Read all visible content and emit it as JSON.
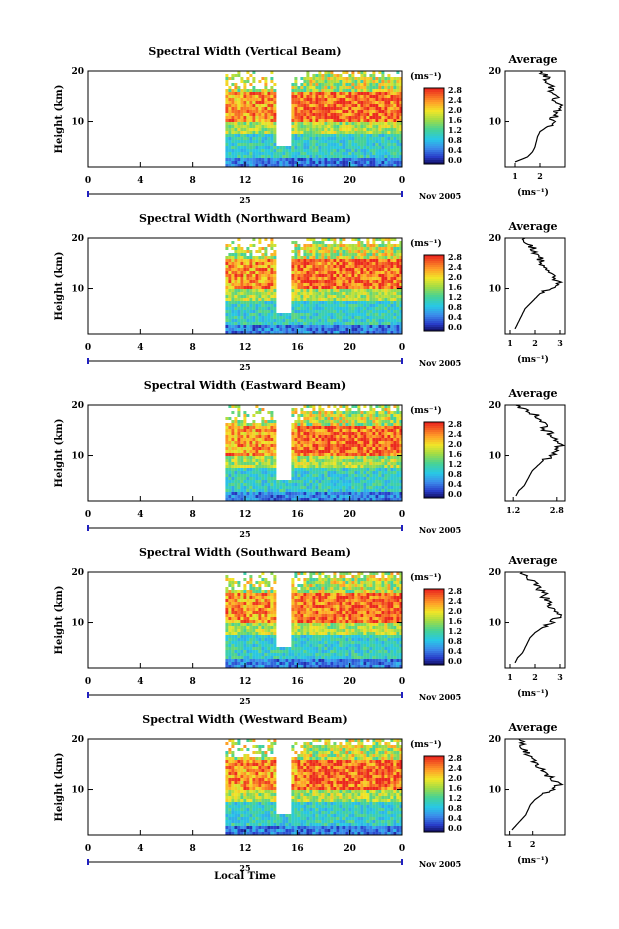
{
  "footer_label": "Local Time",
  "date_label": "Nov 2005",
  "day_label": "25",
  "unit_label": "(ms⁻¹)",
  "avg_title": "Average",
  "ylabel": "Height (km)",
  "colorbar_ticks": [
    "2.8",
    "2.4",
    "2.0",
    "1.6",
    "1.2",
    "0.8",
    "0.4",
    "0.0"
  ],
  "chart_data": [
    {
      "type": "heatmap",
      "title": "Spectral Width (Vertical Beam)",
      "x_ticks": [
        "0",
        "4",
        "8",
        "12",
        "16",
        "20",
        "0"
      ],
      "y_ticks": [
        "20",
        "10"
      ],
      "xlim": [
        0,
        24
      ],
      "ylim": [
        1,
        20
      ],
      "data_start_hour": 10.5,
      "gap": [
        14.3,
        15.5
      ],
      "profile": {
        "title": "Average",
        "xlabel": "(ms⁻¹)",
        "x_ticks": [
          "1",
          "2"
        ],
        "xlim": [
          0.6,
          3.0
        ],
        "heights": [
          2,
          3,
          4,
          5,
          6,
          7,
          8,
          9,
          10,
          11,
          12,
          13,
          14,
          15,
          16,
          17,
          18,
          19,
          20
        ],
        "values": [
          1.0,
          1.5,
          1.7,
          1.8,
          1.85,
          1.9,
          2.0,
          2.3,
          2.5,
          2.6,
          2.7,
          2.9,
          2.6,
          2.7,
          2.4,
          2.5,
          2.3,
          2.2,
          2.0
        ]
      }
    },
    {
      "type": "heatmap",
      "title": "Spectral Width (Northward Beam)",
      "x_ticks": [
        "0",
        "4",
        "8",
        "12",
        "16",
        "20",
        "0"
      ],
      "y_ticks": [
        "20",
        "10"
      ],
      "xlim": [
        0,
        24
      ],
      "ylim": [
        1,
        20
      ],
      "data_start_hour": 10.5,
      "gap": [
        14.3,
        15.5
      ],
      "profile": {
        "title": "Average",
        "xlabel": "(ms⁻¹)",
        "x_ticks": [
          "1",
          "2",
          "3"
        ],
        "xlim": [
          0.8,
          3.2
        ],
        "heights": [
          2,
          3,
          4,
          5,
          6,
          7,
          8,
          9,
          10,
          11,
          12,
          13,
          14,
          15,
          16,
          17,
          18,
          19,
          20
        ],
        "values": [
          1.2,
          1.3,
          1.4,
          1.5,
          1.6,
          1.8,
          2.0,
          2.2,
          2.6,
          3.0,
          2.8,
          2.6,
          2.5,
          2.3,
          2.2,
          2.0,
          1.9,
          1.7,
          1.6
        ]
      }
    },
    {
      "type": "heatmap",
      "title": "Spectral Width (Eastward Beam)",
      "x_ticks": [
        "0",
        "4",
        "8",
        "12",
        "16",
        "20",
        "0"
      ],
      "y_ticks": [
        "20",
        "10"
      ],
      "xlim": [
        0,
        24
      ],
      "ylim": [
        1,
        20
      ],
      "data_start_hour": 10.5,
      "gap": [
        14.3,
        15.5
      ],
      "profile": {
        "title": "Average",
        "xlabel": "",
        "x_ticks": [
          "1.2",
          "2.8"
        ],
        "xlim": [
          0.9,
          3.1
        ],
        "heights": [
          2,
          3,
          4,
          5,
          6,
          7,
          8,
          9,
          10,
          11,
          12,
          13,
          14,
          15,
          16,
          17,
          18,
          19,
          20
        ],
        "values": [
          1.3,
          1.4,
          1.6,
          1.7,
          1.8,
          1.9,
          2.1,
          2.3,
          2.6,
          2.8,
          2.9,
          2.7,
          2.6,
          2.4,
          2.3,
          2.2,
          2.0,
          1.6,
          1.3
        ]
      }
    },
    {
      "type": "heatmap",
      "title": "Spectral Width (Southward Beam)",
      "x_ticks": [
        "0",
        "4",
        "8",
        "12",
        "16",
        "20",
        "0"
      ],
      "y_ticks": [
        "20",
        "10"
      ],
      "xlim": [
        0,
        24
      ],
      "ylim": [
        1,
        20
      ],
      "data_start_hour": 10.5,
      "gap": [
        14.3,
        15.5
      ],
      "profile": {
        "title": "Average",
        "xlabel": "(ms⁻¹)",
        "x_ticks": [
          "1",
          "2",
          "3"
        ],
        "xlim": [
          0.8,
          3.2
        ],
        "heights": [
          2,
          3,
          4,
          5,
          6,
          7,
          8,
          9,
          10,
          11,
          12,
          13,
          14,
          15,
          16,
          17,
          18,
          19,
          20
        ],
        "values": [
          1.2,
          1.3,
          1.5,
          1.6,
          1.7,
          1.8,
          2.0,
          2.3,
          2.6,
          2.9,
          3.0,
          2.7,
          2.5,
          2.4,
          2.3,
          2.1,
          1.9,
          1.6,
          1.5
        ]
      }
    },
    {
      "type": "heatmap",
      "title": "Spectral Width (Westward Beam)",
      "x_ticks": [
        "0",
        "4",
        "8",
        "12",
        "16",
        "20",
        "0"
      ],
      "y_ticks": [
        "20",
        "10"
      ],
      "xlim": [
        0,
        24
      ],
      "ylim": [
        1,
        20
      ],
      "data_start_hour": 10.5,
      "gap": [
        14.3,
        15.5
      ],
      "profile": {
        "title": "Average",
        "xlabel": "(ms⁻¹)",
        "x_ticks": [
          "1",
          "2"
        ],
        "xlim": [
          0.8,
          3.4
        ],
        "heights": [
          2,
          3,
          4,
          5,
          6,
          7,
          8,
          9,
          10,
          11,
          12,
          13,
          14,
          15,
          16,
          17,
          18,
          19,
          20
        ],
        "values": [
          1.1,
          1.3,
          1.5,
          1.7,
          1.8,
          1.9,
          2.1,
          2.4,
          2.8,
          3.1,
          2.9,
          2.6,
          2.4,
          2.2,
          2.0,
          1.8,
          1.6,
          1.5,
          1.4
        ]
      }
    }
  ]
}
